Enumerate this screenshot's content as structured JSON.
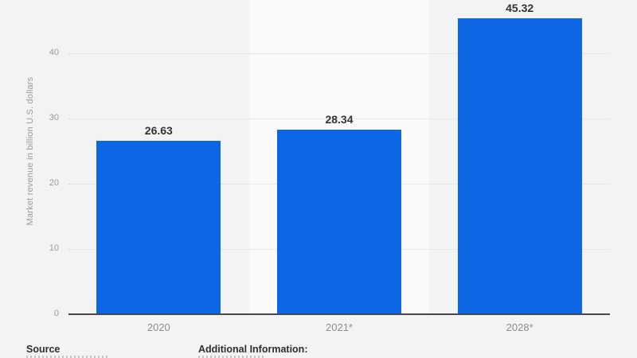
{
  "chart_data": {
    "type": "bar",
    "categories": [
      "2020",
      "2021*",
      "2028*"
    ],
    "values": [
      26.63,
      28.34,
      45.32
    ],
    "value_labels": [
      "26.63",
      "28.34",
      "45.32"
    ],
    "title": "",
    "xlabel": "",
    "ylabel": "Market revenue in billion U.S. dollars",
    "yticks": [
      0,
      10,
      20,
      30,
      40
    ],
    "ylim": [
      0,
      48
    ],
    "grid": "horizontal-dotted",
    "legend": "none",
    "bar_color": "#0d66e3"
  },
  "footer": {
    "source_label": "Source",
    "additional_info_label": "Additional Information:"
  },
  "colors": {
    "bar": "#0d66e3",
    "background": "#f3f3f4",
    "band_light": "#fafafb",
    "axis": "#47474c",
    "gridline": "#d9d9db",
    "tick_text": "#9a9a9e",
    "category_text": "#8d8d91",
    "value_text": "#333336",
    "footer_text": "#2e2e31"
  }
}
